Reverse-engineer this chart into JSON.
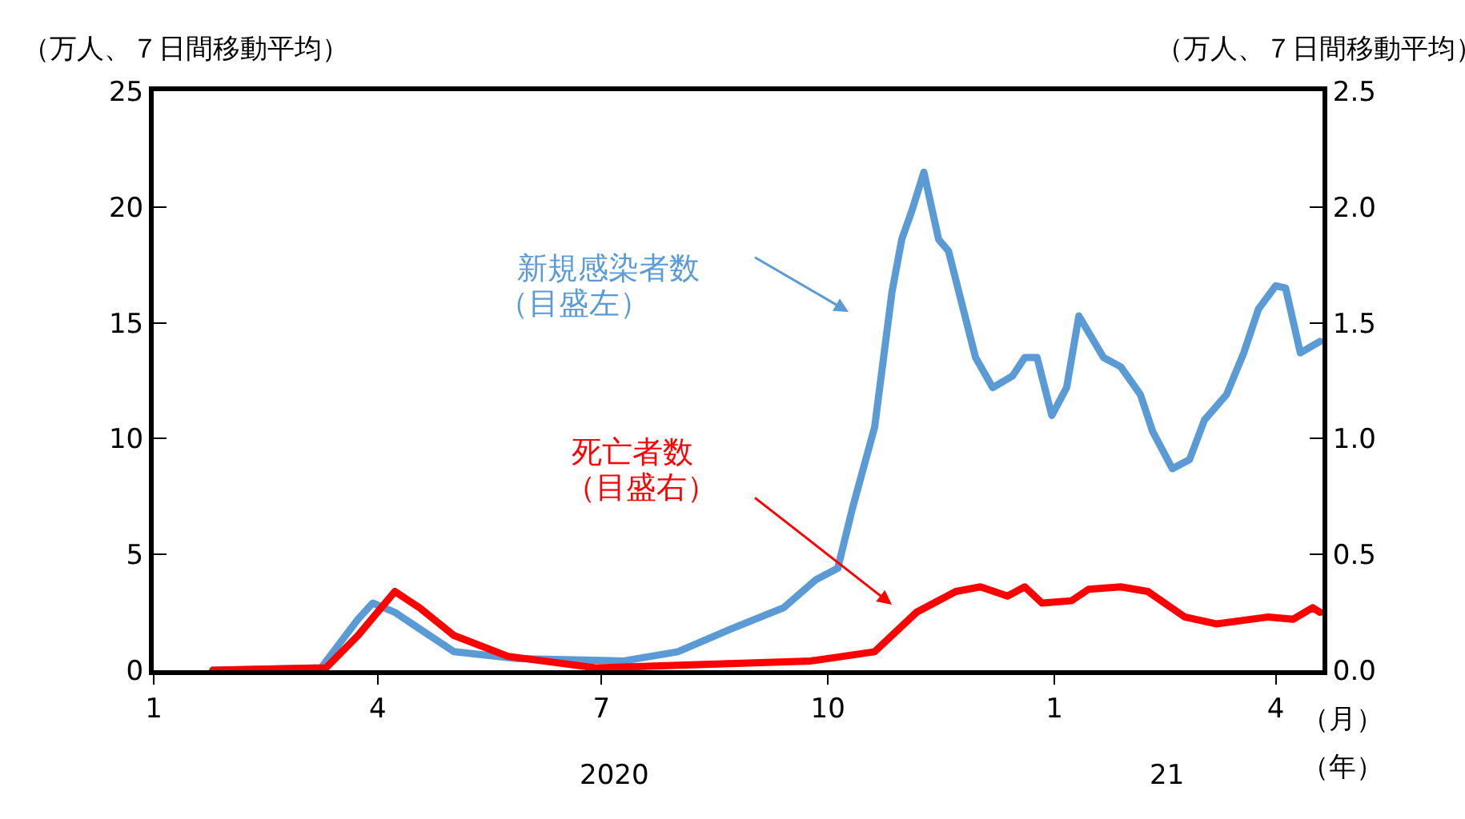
{
  "chart_data": {
    "type": "line",
    "ylabel": "（万人、７日間移動平均）",
    "y2label": "（万人、７日間移動平均）",
    "xlabel": "（月）",
    "xlim": [
      "2020-01-01",
      "2021-04-20"
    ],
    "xticks": [
      {
        "value": "2020-01-01",
        "label": "1"
      },
      {
        "value": "2020-04-01",
        "label": "4"
      },
      {
        "value": "2020-07-01",
        "label": "7"
      },
      {
        "value": "2020-10-01",
        "label": "10"
      },
      {
        "value": "2021-01-01",
        "label": "1"
      },
      {
        "value": "2021-04-01",
        "label": "4"
      }
    ],
    "ylim": [
      0,
      25
    ],
    "yticks": [
      0,
      5,
      10,
      15,
      20,
      25
    ],
    "y2lim": [
      0,
      2.5
    ],
    "y2ticks": [
      {
        "value": 0,
        "label": "0.0"
      },
      {
        "value": 0.5,
        "label": "0.5"
      },
      {
        "value": 1,
        "label": "1.0"
      },
      {
        "value": 1.5,
        "label": "1.5"
      },
      {
        "value": 2,
        "label": "2.0"
      },
      {
        "value": 2.5,
        "label": "2.5"
      }
    ],
    "marker": "none",
    "line_style": "solid",
    "series": [
      {
        "color": "#5b9bd5",
        "x": [
          "2020-01-25",
          "2020-03-09",
          "2020-03-24",
          "2020-03-30",
          "2020-04-08",
          "2020-05-02",
          "2020-05-28",
          "2020-07-10",
          "2020-08-01",
          "2020-08-23",
          "2020-09-13",
          "2020-09-26",
          "2020-10-05",
          "2020-10-11",
          "2020-10-20",
          "2020-10-27",
          "2020-10-31",
          "2020-11-04",
          "2020-11-09",
          "2020-11-15",
          "2020-11-19",
          "2020-11-30",
          "2020-12-07",
          "2020-12-15",
          "2020-12-20",
          "2020-12-25",
          "2020-12-31",
          "2021-01-06",
          "2021-01-11",
          "2021-01-21",
          "2021-01-28",
          "2021-02-05",
          "2021-02-10",
          "2021-02-18",
          "2021-02-25",
          "2021-03-03",
          "2021-03-12",
          "2021-03-19",
          "2021-03-25",
          "2021-04-01",
          "2021-04-05",
          "2021-04-11",
          "2021-04-19"
        ],
        "values": [
          0,
          0.1,
          2.2,
          2.9,
          2.5,
          0.8,
          0.5,
          0.4,
          0.8,
          1.8,
          2.7,
          3.9,
          4.4,
          7.0,
          10.5,
          16.3,
          18.6,
          19.8,
          21.5,
          18.6,
          18.1,
          13.5,
          12.2,
          12.7,
          13.5,
          13.5,
          11.0,
          12.2,
          15.3,
          13.5,
          13.1,
          11.9,
          10.3,
          8.7,
          9.1,
          10.8,
          11.9,
          13.7,
          15.6,
          16.6,
          16.5,
          13.7,
          14.2
        ]
      },
      {
        "color": "#ff0000",
        "axis": "y2",
        "x": [
          "2020-01-25",
          "2020-03-11",
          "2020-03-24",
          "2020-04-08",
          "2020-04-18",
          "2020-05-02",
          "2020-05-24",
          "2020-06-29",
          "2020-09-24",
          "2020-10-20",
          "2020-11-06",
          "2020-11-22",
          "2020-12-02",
          "2020-12-13",
          "2020-12-20",
          "2020-12-27",
          "2021-01-08",
          "2021-01-15",
          "2021-01-28",
          "2021-02-08",
          "2021-02-23",
          "2021-03-08",
          "2021-03-29",
          "2021-04-08",
          "2021-04-16",
          "2021-04-19"
        ],
        "values": [
          0,
          0.01,
          0.15,
          0.34,
          0.27,
          0.15,
          0.06,
          0.01,
          0.04,
          0.08,
          0.25,
          0.34,
          0.36,
          0.32,
          0.36,
          0.29,
          0.3,
          0.35,
          0.36,
          0.34,
          0.23,
          0.2,
          0.23,
          0.22,
          0.27,
          0.25
        ]
      }
    ],
    "annotations": [
      "新規感染者数",
      "（目盛左）",
      "死亡者数",
      "（目盛右）",
      "2020",
      "21",
      "（年）"
    ]
  }
}
